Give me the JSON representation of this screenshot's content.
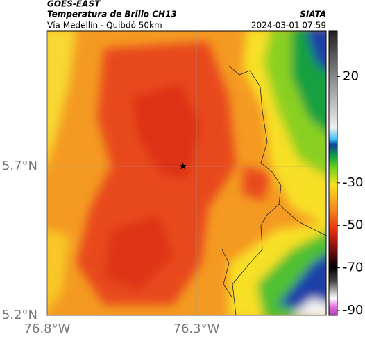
{
  "header": {
    "satellite": "GOES-EAST",
    "title": "Temperatura de Brillo CH13",
    "subtitle": "Vía Medellín - Quibdó 50km",
    "brand": "SIATA",
    "datetime": "2024-03-01 07:59"
  },
  "map": {
    "xlim": [
      -76.8,
      -75.865
    ],
    "ylim": [
      5.2,
      6.153
    ],
    "xticks": [
      {
        "value": -76.8,
        "label": "76.8°W"
      },
      {
        "value": -76.3,
        "label": "76.3°W"
      }
    ],
    "yticks": [
      {
        "value": 5.7,
        "label": "5.7°N"
      },
      {
        "value": 5.2,
        "label": "5.2°N"
      }
    ],
    "marker": {
      "lon": -76.345,
      "lat": 5.7
    },
    "colorbar": {
      "lim": [
        -92.3,
        41.3
      ],
      "ticks": [
        20,
        -30,
        -50,
        -70,
        -90
      ]
    }
  }
}
